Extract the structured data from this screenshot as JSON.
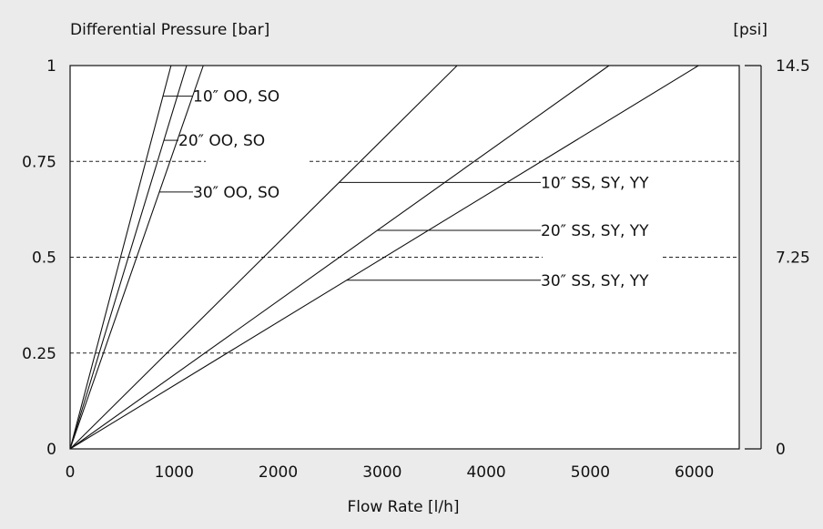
{
  "chart_data": {
    "type": "line",
    "ylabel": "Differential Pressure [bar]",
    "y2label": "[psi]",
    "xlabel": "Flow Rate [l/h]",
    "xlim": [
      0,
      6400
    ],
    "ylim": [
      0,
      1
    ],
    "y2lim": [
      0,
      14.5
    ],
    "x_ticks": [
      {
        "value": 0,
        "label": "0"
      },
      {
        "value": 1000,
        "label": "1000"
      },
      {
        "value": 2000,
        "label": "2000"
      },
      {
        "value": 3000,
        "label": "3000"
      },
      {
        "value": 4000,
        "label": "4000"
      },
      {
        "value": 5000,
        "label": "5000"
      },
      {
        "value": 6000,
        "label": "6000"
      }
    ],
    "y_ticks": [
      {
        "value": 0,
        "label": "0"
      },
      {
        "value": 0.25,
        "label": "0.25"
      },
      {
        "value": 0.5,
        "label": "0.5"
      },
      {
        "value": 0.75,
        "label": "0.75"
      },
      {
        "value": 1,
        "label": "1"
      }
    ],
    "y2_ticks": [
      {
        "value": 0,
        "label": "0"
      },
      {
        "value": 7.25,
        "label": "7.25"
      },
      {
        "value": 14.5,
        "label": "14.5"
      }
    ],
    "grid": "horizontal dashed at 0.25, 0.5, 0.75",
    "series": [
      {
        "name": "10″ OO, SO",
        "x": [
          0,
          970
        ],
        "y": [
          0,
          1
        ],
        "label_at_y": 0.92
      },
      {
        "name": "20″ OO, SO",
        "x": [
          0,
          1120
        ],
        "y": [
          0,
          1
        ],
        "label_at_y": 0.805
      },
      {
        "name": "30″ OO, SO",
        "x": [
          0,
          1280
        ],
        "y": [
          0,
          1
        ],
        "label_at_y": 0.67
      },
      {
        "name": "10″ SS, SY, YY",
        "x": [
          0,
          3720
        ],
        "y": [
          0,
          1
        ],
        "label_at_y": 0.695
      },
      {
        "name": "20″ SS, SY, YY",
        "x": [
          0,
          5180
        ],
        "y": [
          0,
          1
        ],
        "label_at_y": 0.57
      },
      {
        "name": "30″ SS, SY, YY",
        "x": [
          0,
          6040
        ],
        "y": [
          0,
          1
        ],
        "label_at_y": 0.44
      }
    ]
  }
}
